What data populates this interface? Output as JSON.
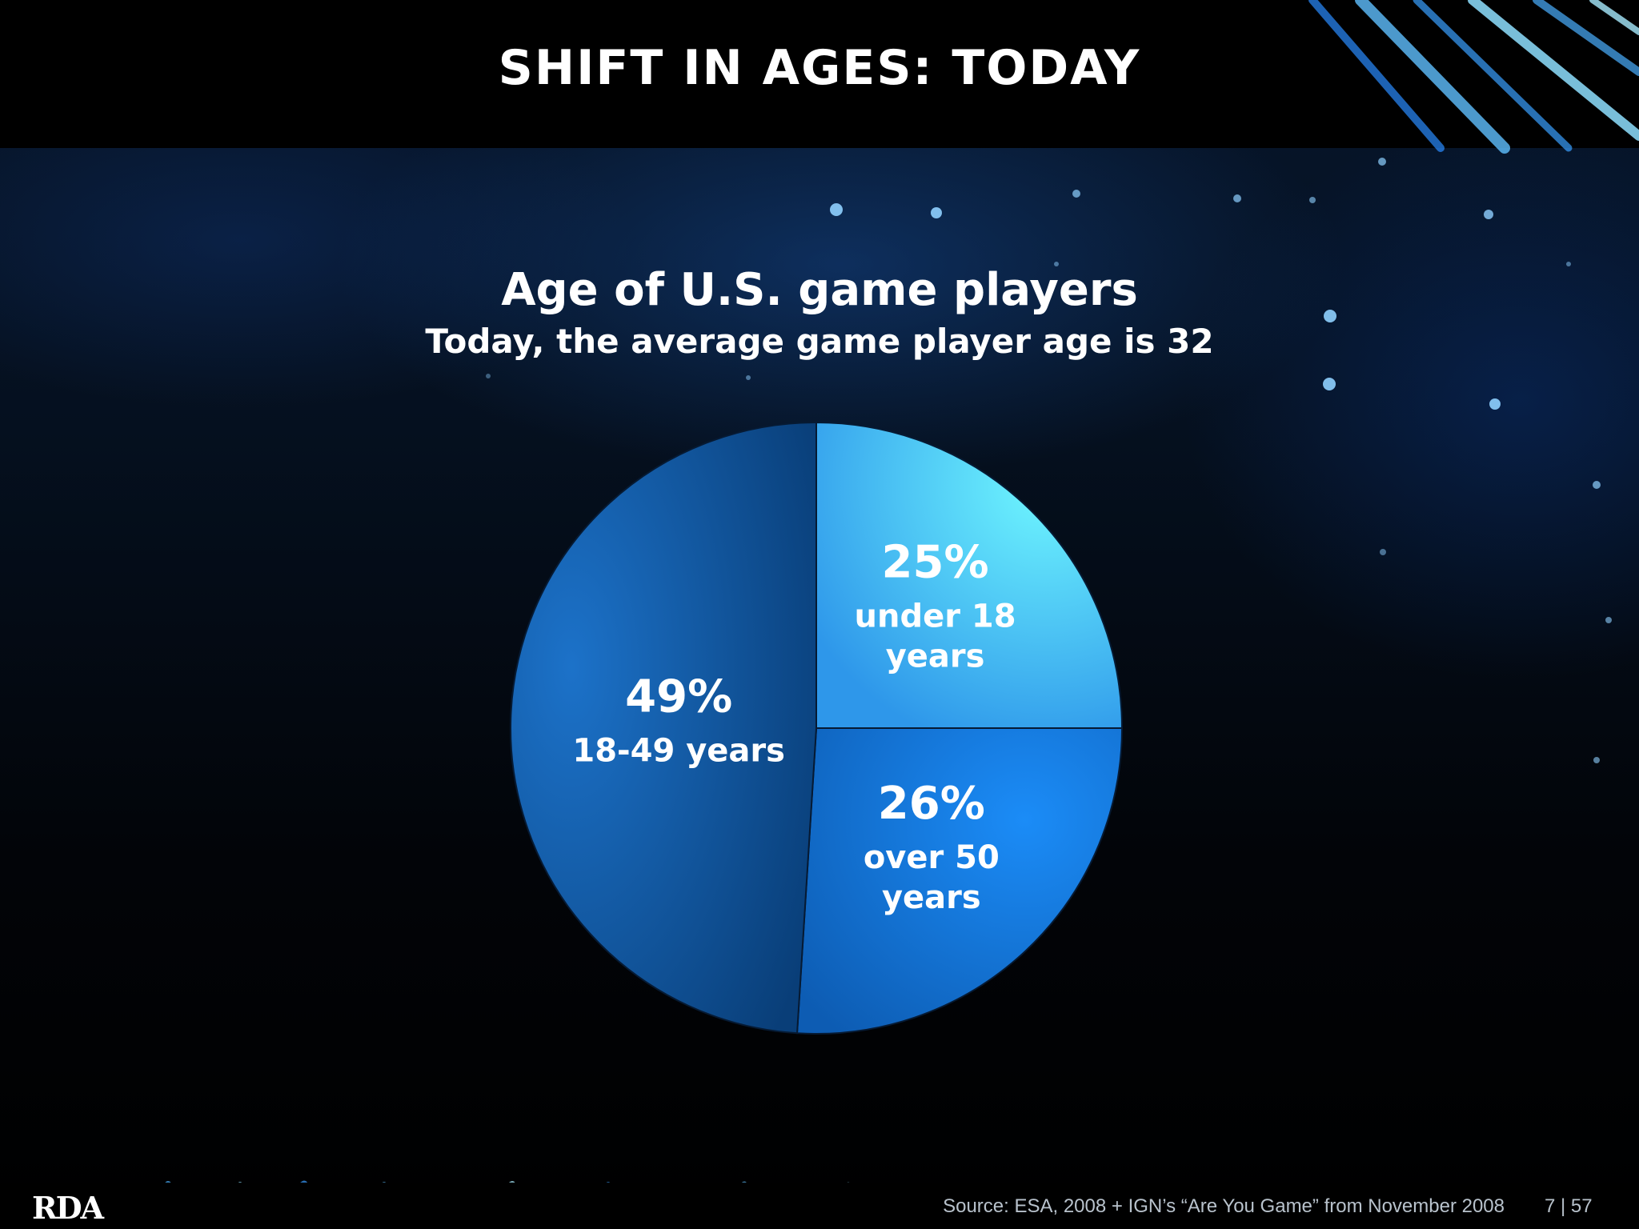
{
  "slide": {
    "title": "SHIFT IN AGES: TODAY",
    "source": "Source: ESA, 2008 + IGN’s “Are You Game” from November 2008",
    "page": "7 | 57",
    "logo": "RDA"
  },
  "colors": {
    "slice_under18": "#52c8f5",
    "slice_over50": "#1a7fe6",
    "slice_18_49": "#0e5fae",
    "background": "#000000"
  },
  "chart_data": {
    "type": "pie",
    "title": "Age of U.S. game players",
    "subtitle": "Today, the average game player age is 32",
    "slices": [
      {
        "pct_label": "25%",
        "label_line1": "under 18",
        "label_line2": "years",
        "value": 25
      },
      {
        "pct_label": "26%",
        "label_line1": "over 50",
        "label_line2": "years",
        "value": 26
      },
      {
        "pct_label": "49%",
        "label_line1": "18-49 years",
        "label_line2": "",
        "value": 49
      }
    ]
  }
}
